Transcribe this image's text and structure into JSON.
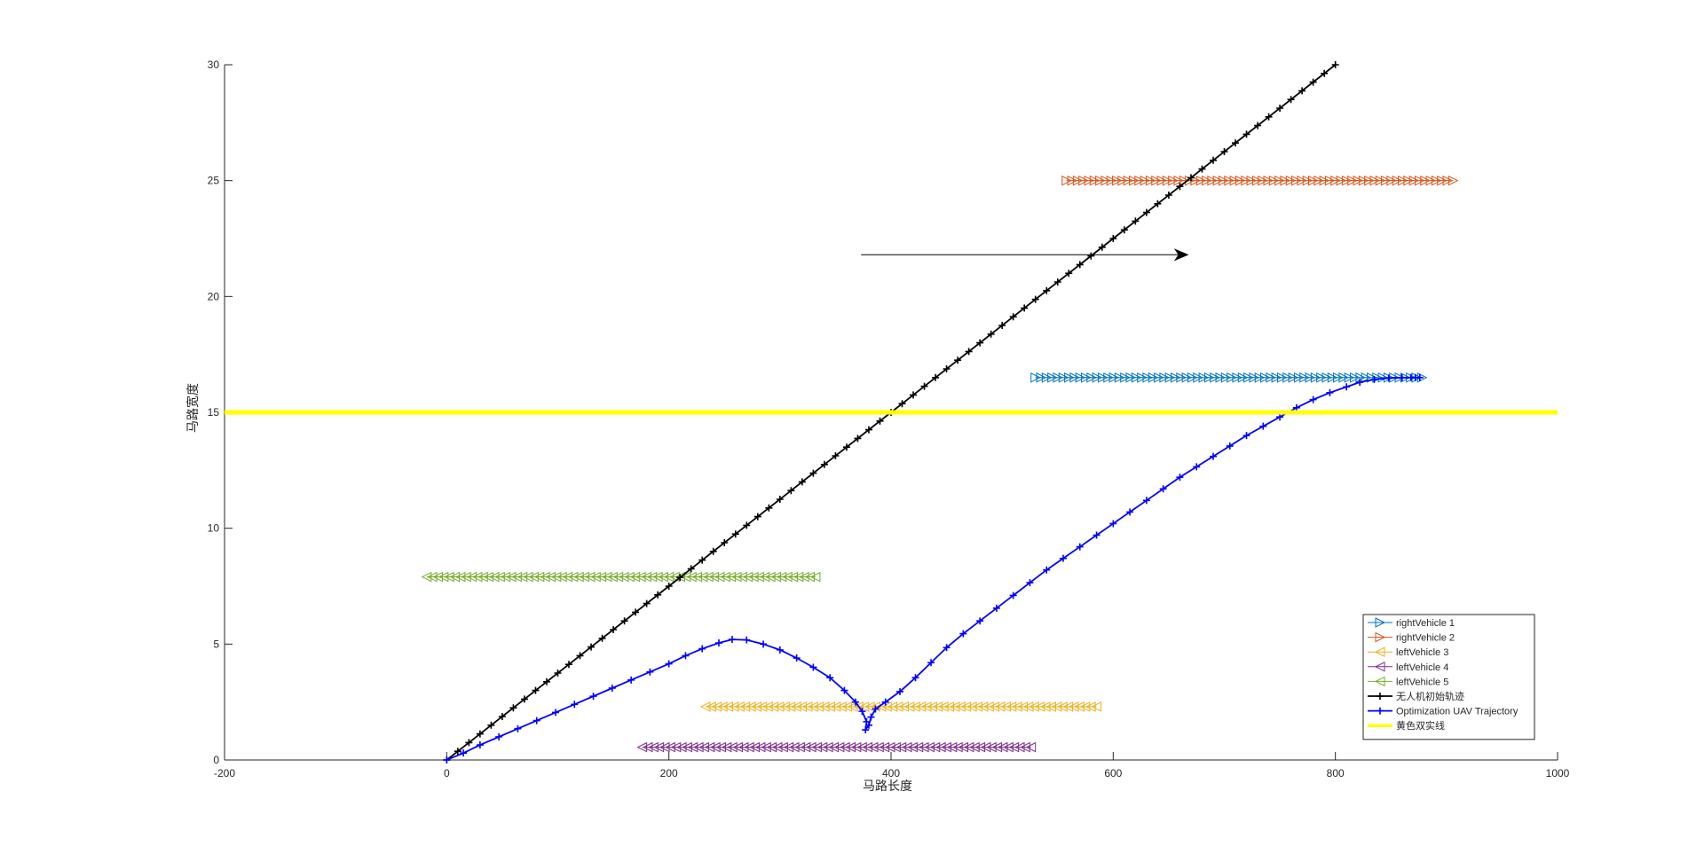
{
  "chart_data": {
    "type": "line",
    "title": "",
    "xlabel": "马路长度",
    "ylabel": "马路宽度",
    "xlim": [
      -200,
      1000
    ],
    "ylim": [
      0,
      30
    ],
    "xticks": [
      "-200",
      "0",
      "200",
      "400",
      "600",
      "800",
      "1000"
    ],
    "yticks": [
      "0",
      "5",
      "10",
      "15",
      "20",
      "25",
      "30"
    ],
    "grid": false,
    "legend_position": "bottom-right",
    "series": [
      {
        "name": "rightVehicle 1",
        "color": "#0072BD",
        "marker": "triangle-right",
        "y": 16.5,
        "x_start": 530,
        "x_end": 878,
        "count": 70
      },
      {
        "name": "rightVehicle 2",
        "color": "#D95319",
        "marker": "triangle-right",
        "y": 25.0,
        "x_start": 558,
        "x_end": 906,
        "count": 70
      },
      {
        "name": "leftVehicle 3",
        "color": "#EDB120",
        "marker": "triangle-left",
        "y": 2.3,
        "x_start": 233,
        "x_end": 585,
        "count": 70
      },
      {
        "name": "leftVehicle 4",
        "color": "#7E2F8E",
        "marker": "triangle-left",
        "y": 0.55,
        "x_start": 176,
        "x_end": 526,
        "count": 70
      },
      {
        "name": "leftVehicle 5",
        "color": "#77AC30",
        "marker": "triangle-left",
        "y": 7.9,
        "x_start": -18,
        "x_end": 332,
        "count": 70
      },
      {
        "name": "无人机初始轨迹",
        "color": "#000000",
        "marker": "plus",
        "x_start": 0,
        "y_start": 0,
        "x_end": 800,
        "y_end": 30,
        "count": 81
      },
      {
        "name": "Optimization UAV Trajectory",
        "color": "#0000FF",
        "marker": "plus",
        "points": [
          [
            0,
            0
          ],
          [
            15,
            0.3
          ],
          [
            30,
            0.65
          ],
          [
            47,
            1.0
          ],
          [
            64,
            1.35
          ],
          [
            81,
            1.7
          ],
          [
            98,
            2.05
          ],
          [
            115,
            2.4
          ],
          [
            132,
            2.75
          ],
          [
            149,
            3.1
          ],
          [
            166,
            3.45
          ],
          [
            183,
            3.8
          ],
          [
            200,
            4.15
          ],
          [
            215,
            4.5
          ],
          [
            230,
            4.8
          ],
          [
            245,
            5.05
          ],
          [
            257,
            5.2
          ],
          [
            270,
            5.18
          ],
          [
            285,
            5.0
          ],
          [
            300,
            4.75
          ],
          [
            315,
            4.4
          ],
          [
            330,
            4.0
          ],
          [
            345,
            3.55
          ],
          [
            358,
            3.0
          ],
          [
            368,
            2.5
          ],
          [
            374,
            2.1
          ],
          [
            378,
            1.65
          ],
          [
            377,
            1.3
          ],
          [
            380,
            1.5
          ],
          [
            382,
            1.85
          ],
          [
            386,
            2.2
          ],
          [
            395,
            2.5
          ],
          [
            408,
            2.95
          ],
          [
            422,
            3.55
          ],
          [
            436,
            4.2
          ],
          [
            450,
            4.85
          ],
          [
            465,
            5.45
          ],
          [
            480,
            6.0
          ],
          [
            495,
            6.55
          ],
          [
            510,
            7.1
          ],
          [
            525,
            7.65
          ],
          [
            540,
            8.2
          ],
          [
            555,
            8.7
          ],
          [
            570,
            9.2
          ],
          [
            585,
            9.7
          ],
          [
            600,
            10.2
          ],
          [
            615,
            10.7
          ],
          [
            630,
            11.2
          ],
          [
            645,
            11.7
          ],
          [
            660,
            12.2
          ],
          [
            675,
            12.65
          ],
          [
            690,
            13.1
          ],
          [
            705,
            13.55
          ],
          [
            720,
            14.0
          ],
          [
            735,
            14.4
          ],
          [
            750,
            14.8
          ],
          [
            765,
            15.2
          ],
          [
            780,
            15.55
          ],
          [
            795,
            15.85
          ],
          [
            810,
            16.1
          ],
          [
            822,
            16.3
          ],
          [
            835,
            16.42
          ],
          [
            848,
            16.48
          ],
          [
            860,
            16.5
          ],
          [
            868,
            16.5
          ],
          [
            872,
            16.5
          ],
          [
            876,
            16.5
          ]
        ]
      },
      {
        "name": "黄色双实线",
        "color": "#FFFF00",
        "marker": "none",
        "y": 15,
        "x_start": -200,
        "x_end": 1000
      }
    ],
    "annotations": [
      {
        "type": "arrow",
        "x_start": 373,
        "x_end": 667,
        "y": 21.8,
        "color": "#000000"
      }
    ]
  }
}
